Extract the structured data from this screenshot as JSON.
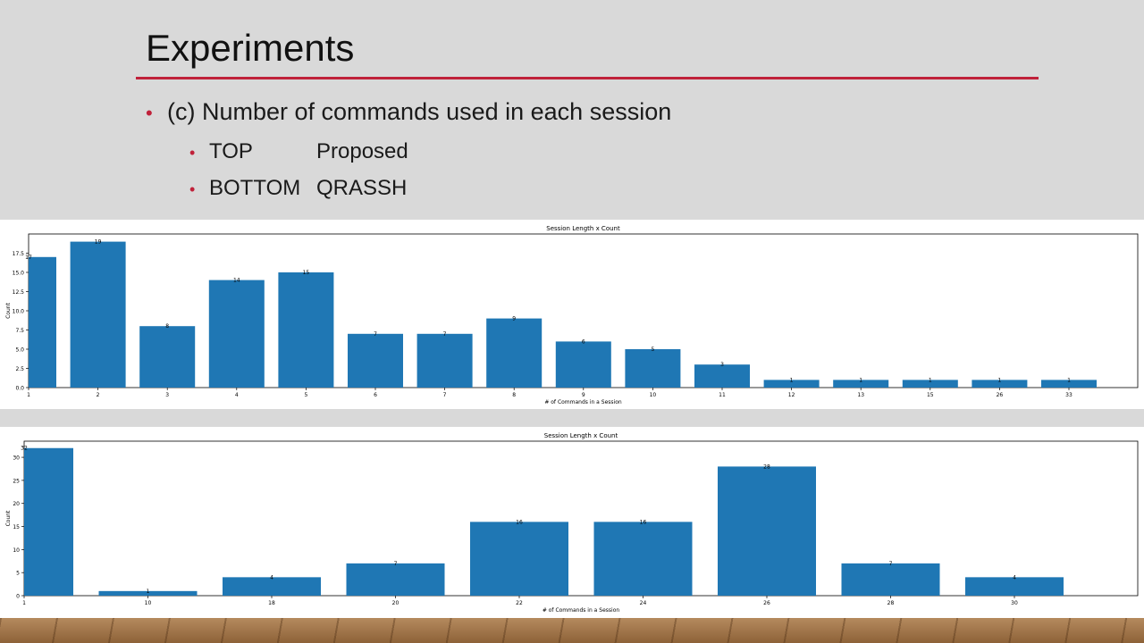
{
  "slide": {
    "title": "Experiments",
    "bullets": [
      {
        "text": "(c) Number of commands used in each session"
      },
      {
        "label": "TOP",
        "value": "Proposed"
      },
      {
        "label": "BOTTOM",
        "value": "QRASSH"
      }
    ]
  },
  "colors": {
    "bar": "#1f77b4",
    "accent": "#c0213a",
    "background": "#d9d9d9"
  },
  "chart_data": [
    {
      "type": "bar",
      "title": "Session Length  x  Count",
      "xlabel": "# of Commands in a Session",
      "ylabel": "Count",
      "categories": [
        "1",
        "2",
        "3",
        "4",
        "5",
        "6",
        "7",
        "8",
        "9",
        "10",
        "11",
        "12",
        "13",
        "15",
        "26",
        "33"
      ],
      "values": [
        17,
        19,
        8,
        14,
        15,
        7,
        7,
        9,
        6,
        5,
        3,
        1,
        1,
        1,
        1,
        1
      ],
      "ylim": [
        0,
        20
      ],
      "yticks": [
        "0.0",
        "2.5",
        "5.0",
        "7.5",
        "10.0",
        "12.5",
        "15.0",
        "17.5"
      ]
    },
    {
      "type": "bar",
      "title": "Session Length  x  Count",
      "xlabel": "# of Commands in a Session",
      "ylabel": "Count",
      "categories": [
        "1",
        "10",
        "18",
        "20",
        "22",
        "24",
        "26",
        "28",
        "30"
      ],
      "values": [
        32,
        1,
        4,
        7,
        16,
        16,
        28,
        7,
        4
      ],
      "ylim": [
        0,
        33.5
      ],
      "yticks": [
        "0",
        "5",
        "10",
        "15",
        "20",
        "25",
        "30"
      ]
    }
  ]
}
